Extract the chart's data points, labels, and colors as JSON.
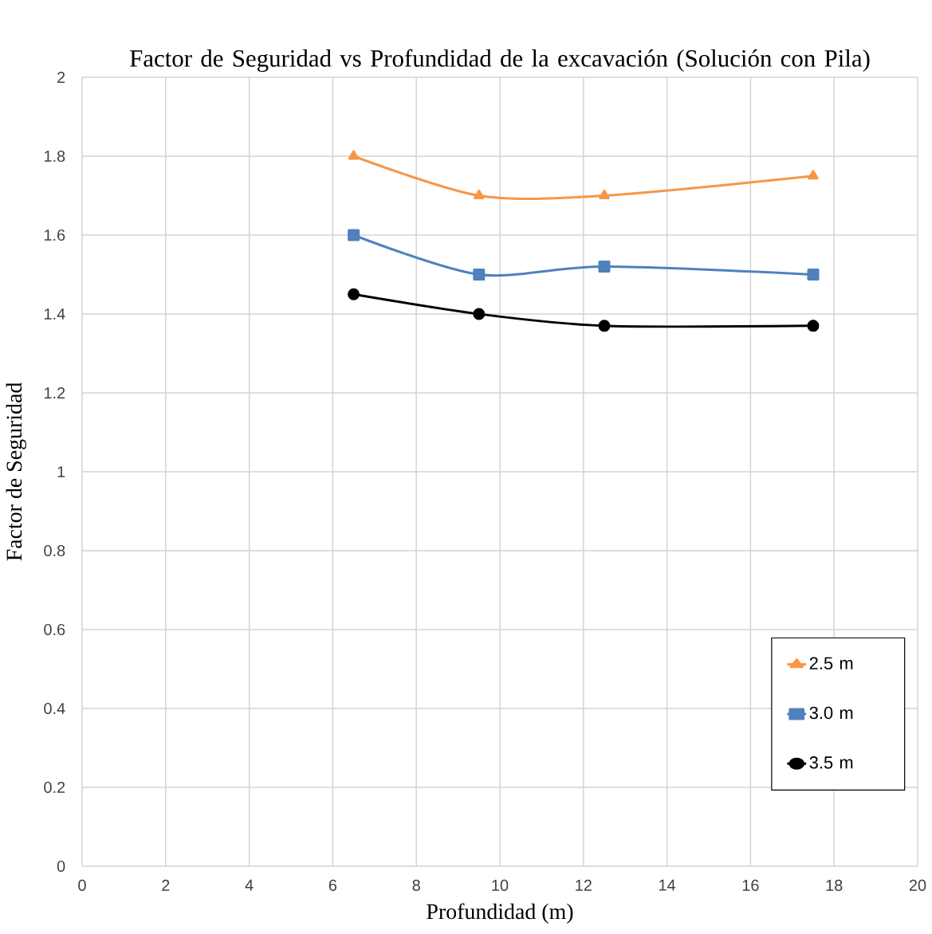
{
  "chart_data": {
    "type": "line",
    "title": "Factor de Seguridad vs Profundidad de la excavación (Solución con Pila)",
    "xlabel": "Profundidad (m)",
    "ylabel": "Factor de Seguridad",
    "x": [
      6.5,
      9.5,
      12.5,
      17.5
    ],
    "series": [
      {
        "name": "2.5 m",
        "color": "#f79646",
        "marker": "triangle",
        "values": [
          1.8,
          1.7,
          1.7,
          1.75
        ]
      },
      {
        "name": "3.0 m",
        "color": "#4f81bd",
        "marker": "square",
        "values": [
          1.6,
          1.5,
          1.52,
          1.5
        ]
      },
      {
        "name": "3.5 m",
        "color": "#000000",
        "marker": "circle",
        "values": [
          1.45,
          1.4,
          1.37,
          1.37
        ]
      }
    ],
    "xlim": [
      0,
      20
    ],
    "xticks": [
      0,
      2,
      4,
      6,
      8,
      10,
      12,
      14,
      16,
      18,
      20
    ],
    "ylim": [
      0,
      2
    ],
    "yticks": [
      0,
      0.2,
      0.4,
      0.6,
      0.8,
      1,
      1.2,
      1.4,
      1.6,
      1.8,
      2
    ],
    "grid": true,
    "legend": "bottom right",
    "line_style": "solid"
  }
}
